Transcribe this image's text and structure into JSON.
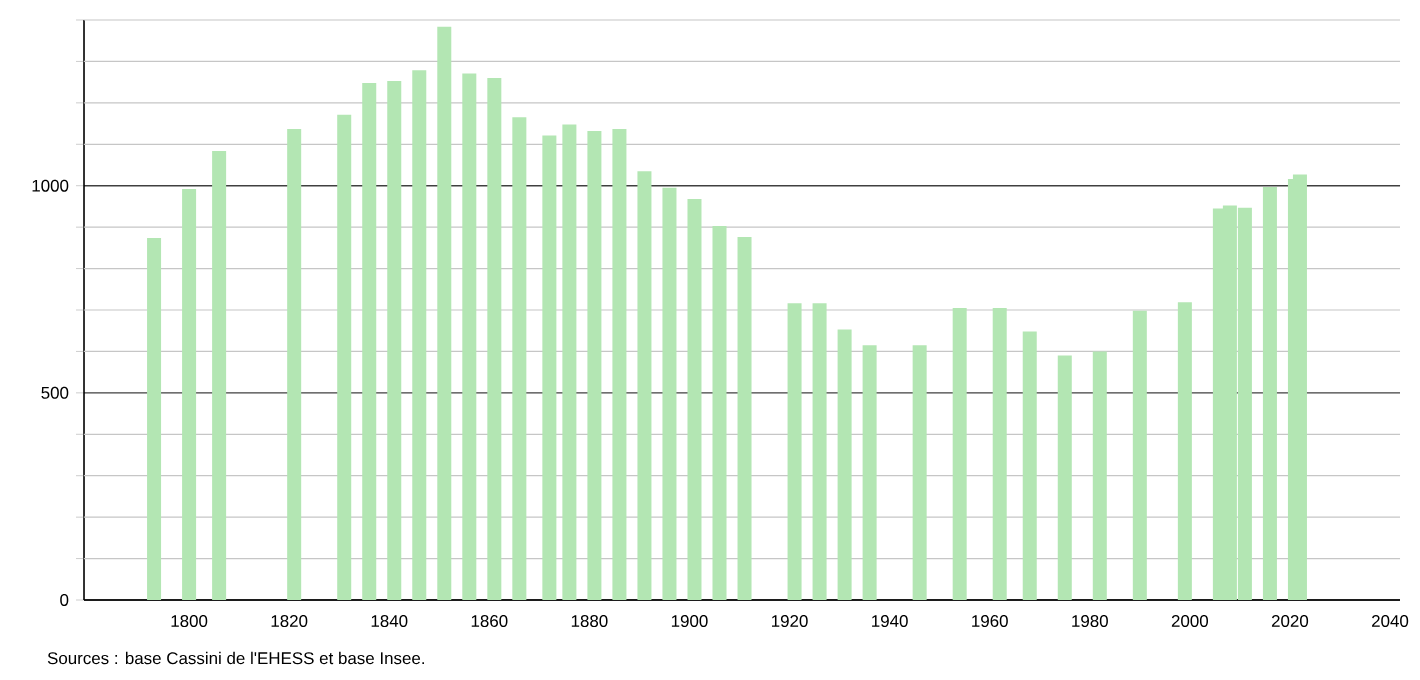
{
  "chart_data": {
    "type": "bar",
    "color": "#b3e6b3",
    "x": [
      1793,
      1800,
      1806,
      1821,
      1831,
      1836,
      1841,
      1846,
      1851,
      1856,
      1861,
      1866,
      1872,
      1876,
      1881,
      1886,
      1891,
      1896,
      1901,
      1906,
      1911,
      1921,
      1926,
      1931,
      1936,
      1946,
      1954,
      1962,
      1968,
      1975,
      1982,
      1990,
      1999,
      2006,
      2008,
      2011,
      2016,
      2021,
      2022
    ],
    "values": [
      874,
      992,
      1084,
      1137,
      1171,
      1248,
      1253,
      1279,
      1384,
      1271,
      1260,
      1165,
      1121,
      1148,
      1132,
      1137,
      1035,
      995,
      968,
      903,
      876,
      716,
      716,
      653,
      615,
      615,
      705,
      705,
      648,
      590,
      600,
      698,
      719,
      945,
      952,
      947,
      997,
      1016,
      1027
    ],
    "xlim": [
      1779,
      2042
    ],
    "ylim": [
      0,
      1400
    ],
    "xticks": [
      1800,
      1820,
      1840,
      1860,
      1880,
      1900,
      1920,
      1940,
      1960,
      1980,
      2000,
      2020,
      2040
    ],
    "yticks": [
      0,
      {
        "value": 100,
        "label": null
      },
      {
        "value": 200,
        "label": null
      },
      {
        "value": 300,
        "label": null
      },
      {
        "value": 400,
        "label": null
      },
      500,
      {
        "value": 600,
        "label": null
      },
      {
        "value": 700,
        "label": null
      },
      {
        "value": 800,
        "label": null
      },
      {
        "value": 900,
        "label": null
      },
      1000,
      {
        "value": 1100,
        "label": null
      },
      {
        "value": 1200,
        "label": null
      },
      {
        "value": 1300,
        "label": null
      },
      {
        "value": 1400,
        "label": null
      }
    ],
    "grid": "y",
    "annotations": [
      "Sources : base Cassini de l'EHESS et base Insee."
    ]
  }
}
